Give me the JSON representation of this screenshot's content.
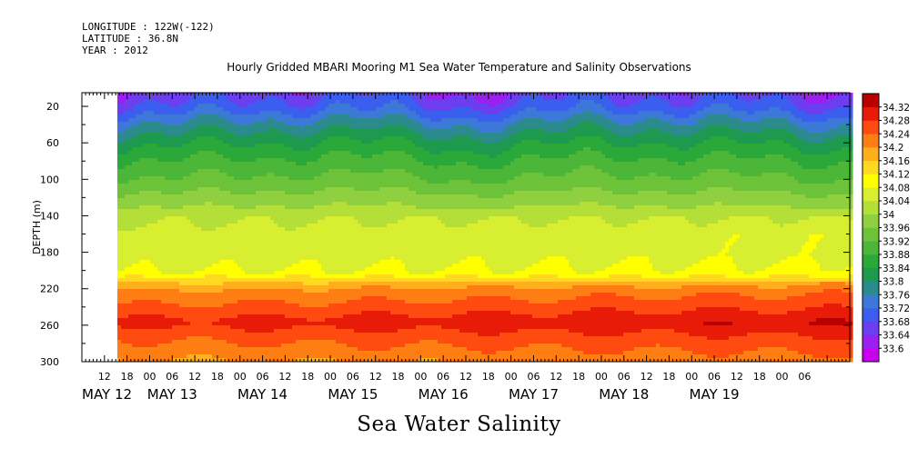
{
  "header": {
    "longitude": "LONGITUDE : 122W(-122)",
    "latitude": "LATITUDE : 36.8N",
    "year": "YEAR : 2012"
  },
  "chart_data": {
    "type": "heatmap",
    "title": "Hourly Gridded MBARI Mooring M1 Sea Water Temperature and Salinity Observations",
    "variable_label": "Sea Water Salinity",
    "ylabel": "DEPTH (m)",
    "y_reversed": true,
    "ylim": [
      300,
      5
    ],
    "y_ticks": [
      20,
      60,
      100,
      140,
      180,
      220,
      260,
      300
    ],
    "xlim_hours": [
      0,
      204
    ],
    "data_start": "MAY 12 18:00",
    "x_hour_labels": [
      "12",
      "18",
      "00",
      "06",
      "12",
      "18",
      "00",
      "06",
      "12",
      "18",
      "00",
      "06",
      "12",
      "18",
      "00",
      "06",
      "12",
      "18",
      "00",
      "06",
      "12",
      "18",
      "00",
      "06",
      "12",
      "18",
      "00",
      "06",
      "12",
      "18",
      "00",
      "06"
    ],
    "x_date_labels": [
      "MAY 12",
      "MAY 13",
      "MAY 14",
      "MAY 15",
      "MAY 16",
      "MAY 17",
      "MAY 18",
      "MAY 19"
    ],
    "colorbar": {
      "levels": [
        33.6,
        33.64,
        33.68,
        33.72,
        33.76,
        33.8,
        33.84,
        33.88,
        33.92,
        33.96,
        34,
        34.04,
        34.08,
        34.12,
        34.16,
        34.2,
        34.24,
        34.28,
        34.32
      ],
      "labels": [
        "33.6",
        "33.64",
        "33.68",
        "33.72",
        "33.76",
        "33.8",
        "33.84",
        "33.88",
        "33.92",
        "33.96",
        "34",
        "34.04",
        "34.08",
        "34.12",
        "34.16",
        "34.2",
        "34.24",
        "34.28",
        "34.32"
      ],
      "colors": [
        "#c800f0",
        "#9b1ff0",
        "#6b3ef0",
        "#3c5ef0",
        "#3c78d8",
        "#2a8a8c",
        "#1e9a50",
        "#2aa83a",
        "#4cb638",
        "#6cc33a",
        "#8ed040",
        "#b4df38",
        "#d8ee30",
        "#ffff00",
        "#ffd820",
        "#ffae1c",
        "#ff7e14",
        "#ff4b10",
        "#e81a08",
        "#b80000"
      ]
    },
    "depth_profile": [
      {
        "depth": 5,
        "value": 33.66
      },
      {
        "depth": 20,
        "value": 33.7
      },
      {
        "depth": 35,
        "value": 33.76
      },
      {
        "depth": 50,
        "value": 33.81
      },
      {
        "depth": 60,
        "value": 33.84
      },
      {
        "depth": 80,
        "value": 33.89
      },
      {
        "depth": 100,
        "value": 33.93
      },
      {
        "depth": 120,
        "value": 33.98
      },
      {
        "depth": 140,
        "value": 34.03
      },
      {
        "depth": 160,
        "value": 34.06
      },
      {
        "depth": 180,
        "value": 34.06
      },
      {
        "depth": 200,
        "value": 34.08
      },
      {
        "depth": 210,
        "value": 34.15
      },
      {
        "depth": 220,
        "value": 34.2
      },
      {
        "depth": 240,
        "value": 34.25
      },
      {
        "depth": 255,
        "value": 34.29
      },
      {
        "depth": 270,
        "value": 34.25
      },
      {
        "depth": 300,
        "value": 34.19
      }
    ]
  }
}
